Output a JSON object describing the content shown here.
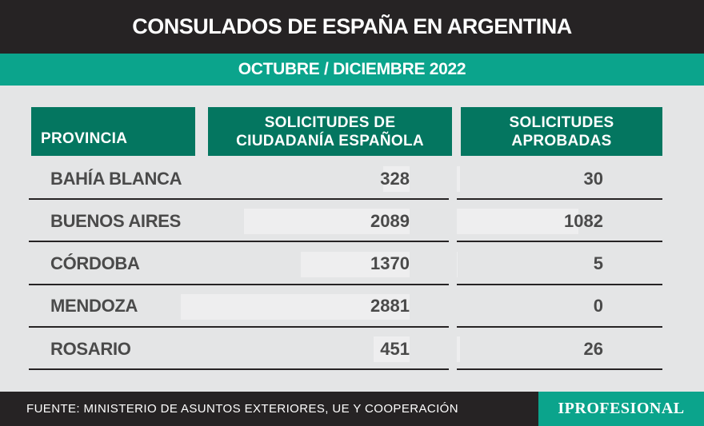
{
  "title": "CONSULADOS DE ESPAÑA EN ARGENTINA",
  "subtitle": "OCTUBRE / DICIEMBRE 2022",
  "colors": {
    "title_bg": "#262324",
    "accent": "#0ba48c",
    "header_bg": "#047660",
    "background": "#e4e5e6",
    "text": "#4a4a4a"
  },
  "chart_data": {
    "type": "table",
    "columns": [
      [
        "PROVINCIA"
      ],
      [
        "SOLICITUDES DE",
        "CIUDADANÍA ESPAÑOLA"
      ],
      [
        "SOLICITUDES",
        "APROBADAS"
      ]
    ],
    "categories": [
      "BAHÍA BLANCA",
      "BUENOS AIRES",
      "CÓRDOBA",
      "MENDOZA",
      "ROSARIO"
    ],
    "series": [
      {
        "values": [
          328,
          2089,
          1370,
          2881,
          451
        ]
      },
      {
        "values": [
          30,
          1082,
          5,
          0,
          26
        ]
      }
    ]
  },
  "footer": {
    "source": "FUENTE: MINISTERIO DE ASUNTOS EXTERIORES, UE Y COOPERACIÓN",
    "logo": "IPROFESIONAL"
  }
}
